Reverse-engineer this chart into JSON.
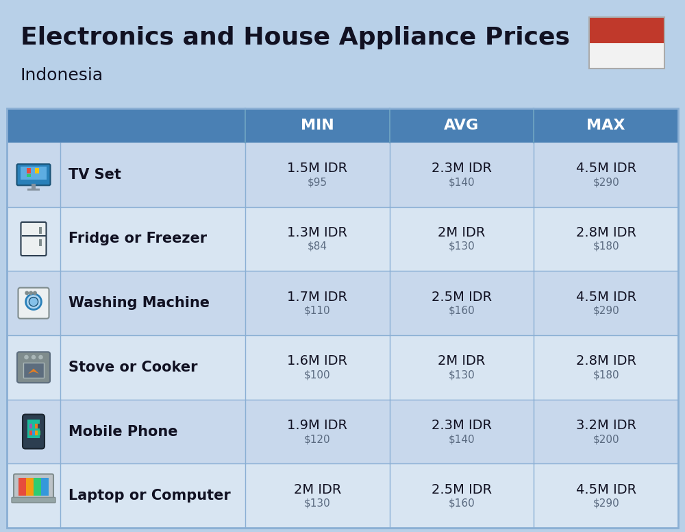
{
  "title": "Electronics and House Appliance Prices",
  "subtitle": "Indonesia",
  "background_color": "#b8d0e8",
  "header_color": "#4a80b4",
  "header_text_color": "#ffffff",
  "row_bg_even": "#c8d8ec",
  "row_bg_odd": "#d8e5f2",
  "divider_color": "#8aafd4",
  "text_color_dark": "#111122",
  "text_color_usd": "#5a6a80",
  "flag_red": "#c0392b",
  "flag_white": "#f2f2f2",
  "columns": [
    "MIN",
    "AVG",
    "MAX"
  ],
  "rows": [
    {
      "name": "TV Set",
      "min_idr": "1.5M IDR",
      "min_usd": "$95",
      "avg_idr": "2.3M IDR",
      "avg_usd": "$140",
      "max_idr": "4.5M IDR",
      "max_usd": "$290"
    },
    {
      "name": "Fridge or Freezer",
      "min_idr": "1.3M IDR",
      "min_usd": "$84",
      "avg_idr": "2M IDR",
      "avg_usd": "$130",
      "max_idr": "2.8M IDR",
      "max_usd": "$180"
    },
    {
      "name": "Washing Machine",
      "min_idr": "1.7M IDR",
      "min_usd": "$110",
      "avg_idr": "2.5M IDR",
      "avg_usd": "$160",
      "max_idr": "4.5M IDR",
      "max_usd": "$290"
    },
    {
      "name": "Stove or Cooker",
      "min_idr": "1.6M IDR",
      "min_usd": "$100",
      "avg_idr": "2M IDR",
      "avg_usd": "$130",
      "max_idr": "2.8M IDR",
      "max_usd": "$180"
    },
    {
      "name": "Mobile Phone",
      "min_idr": "1.9M IDR",
      "min_usd": "$120",
      "avg_idr": "2.3M IDR",
      "avg_usd": "$140",
      "max_idr": "3.2M IDR",
      "max_usd": "$200"
    },
    {
      "name": "Laptop or Computer",
      "min_idr": "2M IDR",
      "min_usd": "$130",
      "avg_idr": "2.5M IDR",
      "avg_usd": "$160",
      "max_idr": "4.5M IDR",
      "max_usd": "$290"
    }
  ],
  "fig_width": 10.0,
  "fig_height": 7.76,
  "dpi": 100
}
